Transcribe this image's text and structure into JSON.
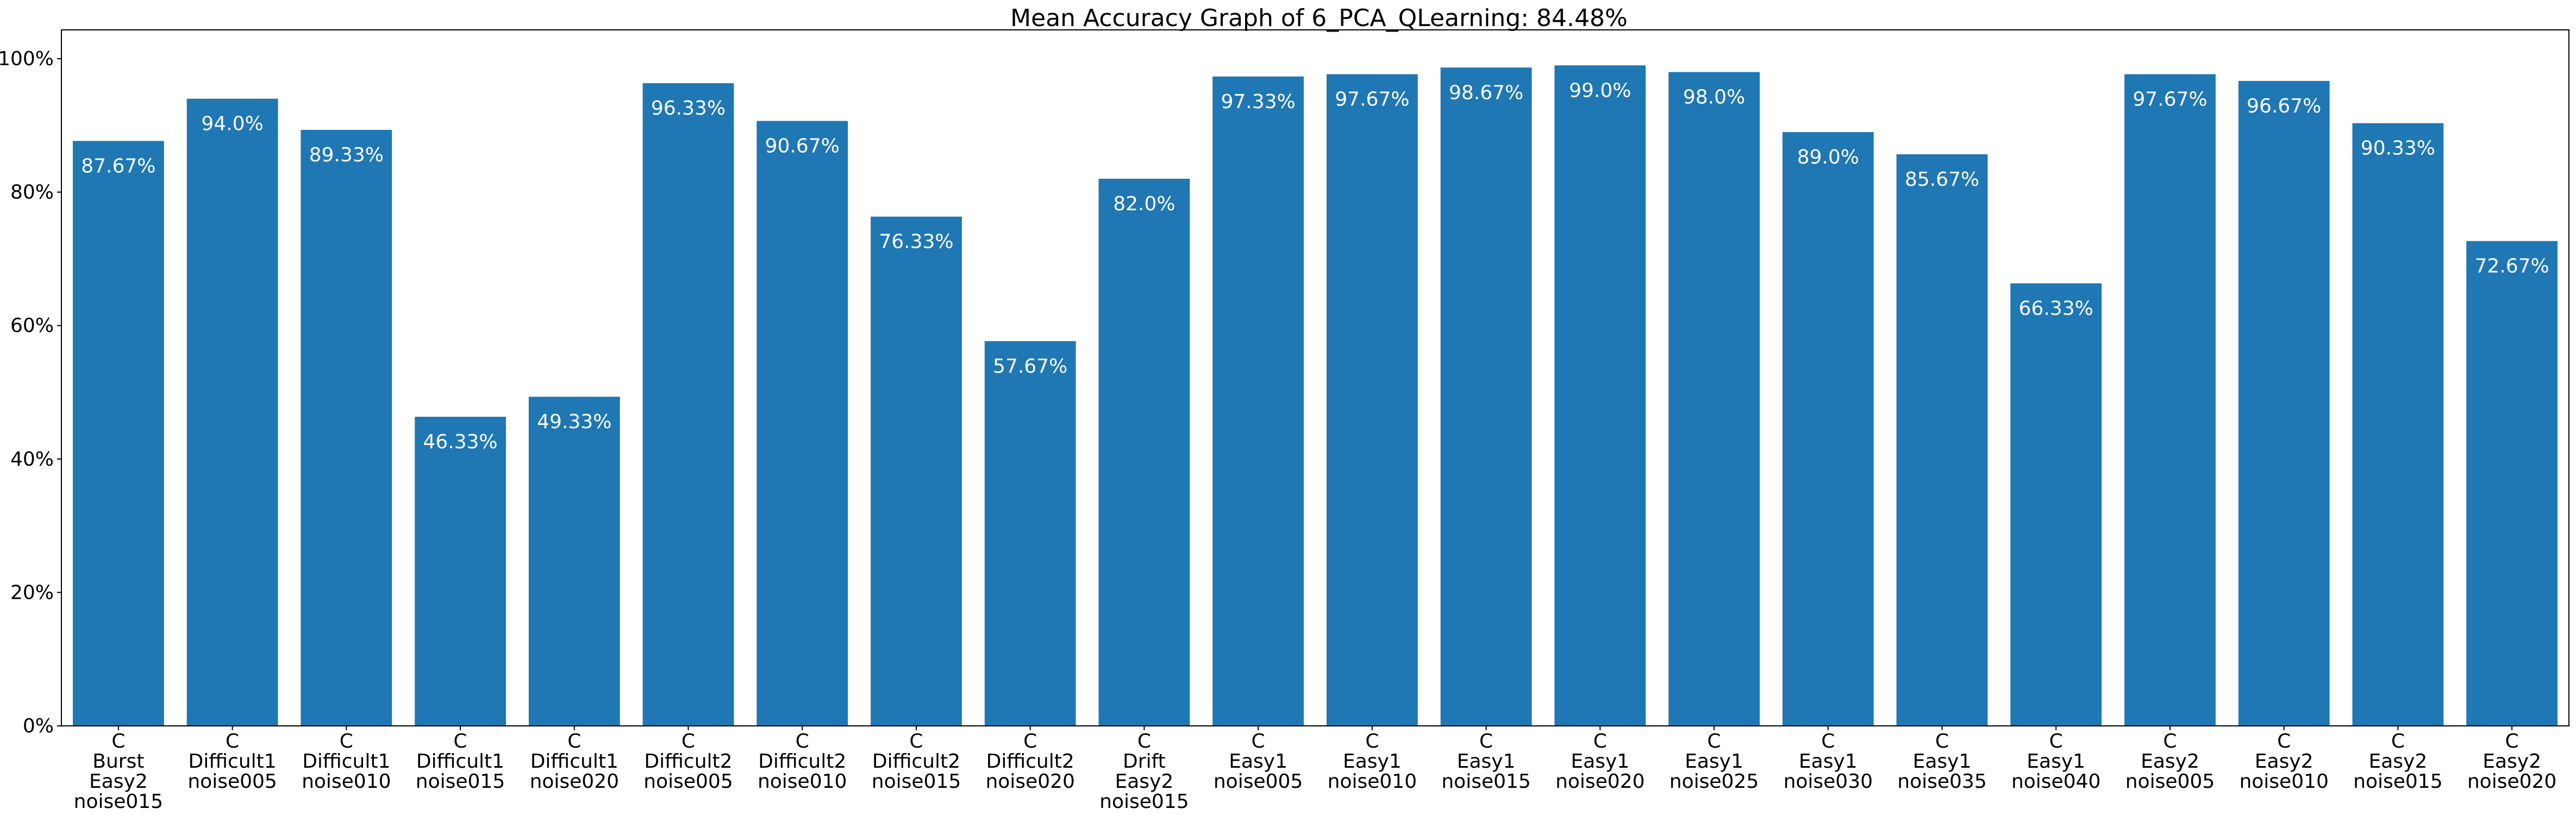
{
  "chart_data": {
    "type": "bar",
    "title": "Mean Accuracy Graph of 6_PCA_QLearning: 84.48%",
    "xlabel": "",
    "ylabel": "",
    "ylim": [
      0,
      100
    ],
    "yticks": [
      0,
      20,
      40,
      60,
      80,
      100
    ],
    "ytick_labels": [
      "0%",
      "20%",
      "40%",
      "60%",
      "80%",
      "100%"
    ],
    "grid": false,
    "bar_color": "#1f77b4",
    "categories": [
      [
        "C",
        "Burst",
        "Easy2",
        "noise015"
      ],
      [
        "C",
        "Difficult1",
        "noise005"
      ],
      [
        "C",
        "Difficult1",
        "noise010"
      ],
      [
        "C",
        "Difficult1",
        "noise015"
      ],
      [
        "C",
        "Difficult1",
        "noise020"
      ],
      [
        "C",
        "Difficult2",
        "noise005"
      ],
      [
        "C",
        "Difficult2",
        "noise010"
      ],
      [
        "C",
        "Difficult2",
        "noise015"
      ],
      [
        "C",
        "Difficult2",
        "noise020"
      ],
      [
        "C",
        "Drift",
        "Easy2",
        "noise015"
      ],
      [
        "C",
        "Easy1",
        "noise005"
      ],
      [
        "C",
        "Easy1",
        "noise010"
      ],
      [
        "C",
        "Easy1",
        "noise015"
      ],
      [
        "C",
        "Easy1",
        "noise020"
      ],
      [
        "C",
        "Easy1",
        "noise025"
      ],
      [
        "C",
        "Easy1",
        "noise030"
      ],
      [
        "C",
        "Easy1",
        "noise035"
      ],
      [
        "C",
        "Easy1",
        "noise040"
      ],
      [
        "C",
        "Easy2",
        "noise005"
      ],
      [
        "C",
        "Easy2",
        "noise010"
      ],
      [
        "C",
        "Easy2",
        "noise015"
      ],
      [
        "C",
        "Easy2",
        "noise020"
      ]
    ],
    "values": [
      87.67,
      94.0,
      89.33,
      46.33,
      49.33,
      96.33,
      90.67,
      76.33,
      57.67,
      82.0,
      97.33,
      97.67,
      98.67,
      99.0,
      98.0,
      89.0,
      85.67,
      66.33,
      97.67,
      96.67,
      90.33,
      72.67
    ],
    "value_labels": [
      "87.67%",
      "94.0%",
      "89.33%",
      "46.33%",
      "49.33%",
      "96.33%",
      "90.67%",
      "76.33%",
      "57.67%",
      "82.0%",
      "97.33%",
      "97.67%",
      "98.67%",
      "99.0%",
      "98.0%",
      "89.0%",
      "85.67%",
      "66.33%",
      "97.67%",
      "96.67%",
      "90.33%",
      "72.67%"
    ]
  }
}
